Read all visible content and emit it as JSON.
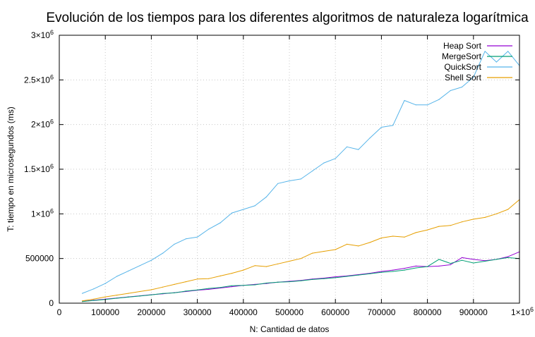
{
  "chart_data": {
    "type": "line",
    "title": "Evolución de los tiempos para los diferentes algoritmos de naturaleza logarítmica",
    "xlabel": "N: Cantidad de datos",
    "ylabel": "T: tiempo en microsegundos (ms)",
    "xlim": [
      0,
      1000000
    ],
    "ylim": [
      0,
      3000000
    ],
    "grid": true,
    "legend_position": "top-right",
    "x_ticks": [
      {
        "value": 0,
        "label": "0"
      },
      {
        "value": 100000,
        "label": "100000"
      },
      {
        "value": 200000,
        "label": "200000"
      },
      {
        "value": 300000,
        "label": "300000"
      },
      {
        "value": 400000,
        "label": "400000"
      },
      {
        "value": 500000,
        "label": "500000"
      },
      {
        "value": 600000,
        "label": "600000"
      },
      {
        "value": 700000,
        "label": "700000"
      },
      {
        "value": 800000,
        "label": "800000"
      },
      {
        "value": 900000,
        "label": "900000"
      }
    ],
    "x_end_tick": {
      "value": 1000000,
      "mantissa": "1×10",
      "exp": "6"
    },
    "y_ticks": [
      {
        "value": 0,
        "mantissa": "0",
        "exp": ""
      },
      {
        "value": 500000,
        "mantissa": "500000",
        "exp": ""
      },
      {
        "value": 1000000,
        "mantissa": "1×10",
        "exp": "6"
      },
      {
        "value": 1500000,
        "mantissa": "1.5×10",
        "exp": "6"
      },
      {
        "value": 2000000,
        "mantissa": "2×10",
        "exp": "6"
      },
      {
        "value": 2500000,
        "mantissa": "2.5×10",
        "exp": "6"
      },
      {
        "value": 3000000,
        "mantissa": "3×10",
        "exp": "6"
      }
    ],
    "x": [
      50000,
      75000,
      100000,
      125000,
      150000,
      175000,
      200000,
      225000,
      250000,
      275000,
      300000,
      325000,
      350000,
      375000,
      400000,
      425000,
      450000,
      475000,
      500000,
      525000,
      550000,
      575000,
      600000,
      625000,
      650000,
      675000,
      700000,
      725000,
      750000,
      775000,
      800000,
      825000,
      850000,
      875000,
      900000,
      925000,
      950000,
      975000,
      1000000
    ],
    "series": [
      {
        "name": "Heap Sort",
        "color": "#9400d3",
        "values": [
          20000,
          32000,
          45000,
          58000,
          70000,
          82000,
          95000,
          105000,
          118000,
          130000,
          145000,
          155000,
          170000,
          185000,
          200000,
          210000,
          220000,
          235000,
          245000,
          255000,
          270000,
          280000,
          295000,
          305000,
          320000,
          335000,
          355000,
          370000,
          390000,
          415000,
          410000,
          415000,
          430000,
          510000,
          490000,
          475000,
          490000,
          520000,
          575000
        ]
      },
      {
        "name": "MergeSort",
        "color": "#009e73",
        "values": [
          18000,
          30000,
          42000,
          55000,
          68000,
          80000,
          92000,
          108000,
          115000,
          135000,
          148000,
          165000,
          175000,
          195000,
          200000,
          205000,
          225000,
          235000,
          240000,
          250000,
          265000,
          275000,
          285000,
          300000,
          315000,
          330000,
          345000,
          355000,
          370000,
          395000,
          410000,
          490000,
          445000,
          480000,
          450000,
          470000,
          490000,
          510000,
          500000
        ]
      },
      {
        "name": "QuickSort",
        "color": "#56b4e9",
        "values": [
          110000,
          160000,
          220000,
          300000,
          360000,
          420000,
          480000,
          560000,
          660000,
          720000,
          740000,
          830000,
          900000,
          1010000,
          1050000,
          1090000,
          1190000,
          1340000,
          1370000,
          1390000,
          1480000,
          1570000,
          1620000,
          1750000,
          1720000,
          1850000,
          1970000,
          1990000,
          2270000,
          2220000,
          2220000,
          2280000,
          2380000,
          2420000,
          2530000,
          2820000,
          2700000,
          2820000,
          2660000
        ]
      },
      {
        "name": "Shell Sort",
        "color": "#e69f00",
        "values": [
          25000,
          45000,
          70000,
          90000,
          110000,
          130000,
          150000,
          180000,
          210000,
          240000,
          270000,
          275000,
          305000,
          335000,
          370000,
          420000,
          410000,
          440000,
          470000,
          500000,
          560000,
          580000,
          600000,
          660000,
          640000,
          680000,
          730000,
          750000,
          740000,
          790000,
          820000,
          860000,
          870000,
          910000,
          940000,
          960000,
          1000000,
          1050000,
          1160000
        ]
      }
    ]
  }
}
